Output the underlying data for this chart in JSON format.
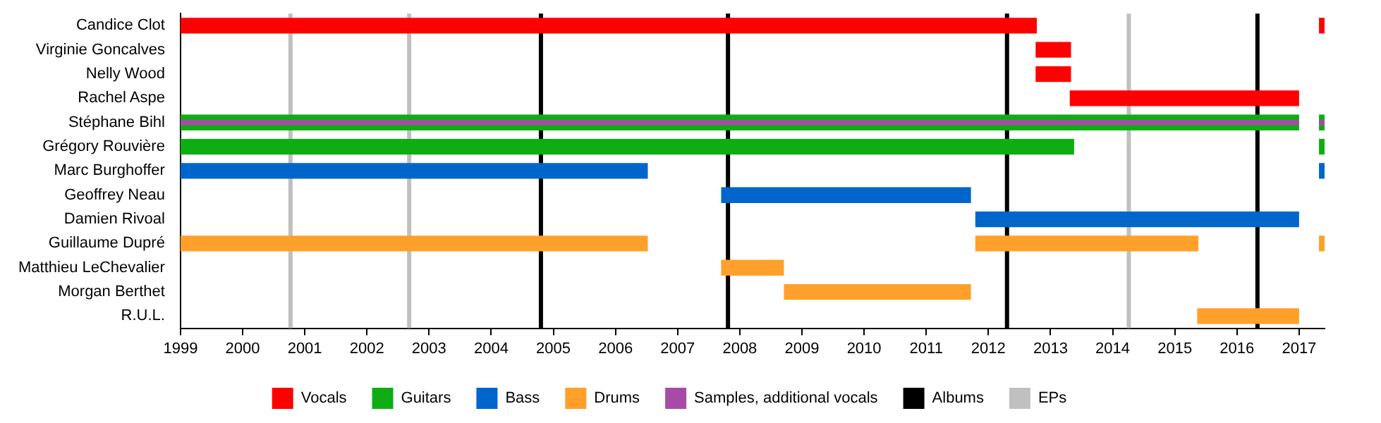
{
  "chart_data": {
    "type": "bar",
    "orientation": "horizontal",
    "categories": [
      "Candice Clot",
      "Virginie Goncalves",
      "Nelly Wood",
      "Rachel Aspe",
      "Stéphane Bihl",
      "Grégory Rouvière",
      "Marc Burghoffer",
      "Geoffrey Neau",
      "Damien Rivoal",
      "Guillaume Dupré",
      "Matthieu LeChevalier",
      "Morgan Berthet",
      "R.U.L."
    ],
    "series": [
      {
        "name": "Vocals",
        "color": "#ff0000",
        "base": [
          1999,
          2012.76,
          2012.76,
          2013.31,
          null,
          null,
          null,
          null,
          null,
          null,
          null,
          null,
          null
        ],
        "values": [
          13.78,
          0.57,
          0.57,
          3.69,
          null,
          null,
          null,
          null,
          null,
          null,
          null,
          null,
          null
        ]
      },
      {
        "name": "Guitars",
        "color": "#0ead13",
        "base": [
          null,
          null,
          null,
          null,
          1999,
          1999,
          null,
          null,
          null,
          null,
          null,
          null,
          null
        ],
        "values": [
          null,
          null,
          null,
          null,
          18.0,
          14.38,
          null,
          null,
          null,
          null,
          null,
          null,
          null
        ]
      },
      {
        "name": "Bass",
        "color": "#0066cc",
        "base": [
          null,
          null,
          null,
          null,
          null,
          null,
          1999,
          2007.7,
          2011.79,
          null,
          null,
          null,
          null
        ],
        "values": [
          null,
          null,
          null,
          null,
          null,
          null,
          7.52,
          4.02,
          5.21,
          null,
          null,
          null,
          null
        ]
      },
      {
        "name": "Drums",
        "color": "#ffa02a",
        "base": [
          null,
          null,
          null,
          null,
          null,
          null,
          null,
          null,
          null,
          1999,
          2007.7,
          2008.71,
          2015.36
        ],
        "values": [
          null,
          null,
          null,
          null,
          null,
          null,
          null,
          null,
          null,
          7.52,
          1.01,
          3.01,
          1.64
        ]
      },
      {
        "name": "Samples, additional vocals",
        "color": "#a64ca6",
        "base": [
          null,
          null,
          null,
          null,
          1999,
          null,
          null,
          null,
          null,
          null,
          null,
          null,
          null
        ],
        "values": [
          null,
          null,
          null,
          null,
          18.0,
          null,
          null,
          null,
          null,
          null,
          null,
          null,
          null
        ]
      },
      {
        "color": "#ff0000",
        "base": [
          2017.32,
          null,
          null,
          null,
          null,
          null,
          null,
          null,
          null,
          null,
          null,
          null,
          null
        ],
        "values": [
          0.09,
          null,
          null,
          null,
          null,
          null,
          null,
          null,
          null,
          null,
          null,
          null,
          null
        ]
      },
      {
        "color": "#0ead13",
        "base": [
          null,
          null,
          null,
          null,
          2017.32,
          2017.32,
          null,
          null,
          null,
          null,
          null,
          null,
          null
        ],
        "values": [
          null,
          null,
          null,
          null,
          0.09,
          0.09,
          null,
          null,
          null,
          null,
          null,
          null,
          null
        ]
      },
      {
        "color": "#a64ca6",
        "base": [
          null,
          null,
          null,
          null,
          2017.32,
          null,
          null,
          null,
          null,
          null,
          null,
          null,
          null
        ],
        "values": [
          null,
          null,
          null,
          null,
          0.09,
          null,
          null,
          null,
          null,
          null,
          null,
          null,
          null
        ]
      },
      {
        "color": "#0066cc",
        "base": [
          null,
          null,
          null,
          null,
          null,
          null,
          2017.32,
          null,
          null,
          null,
          null,
          null,
          null
        ],
        "values": [
          null,
          null,
          null,
          null,
          null,
          null,
          0.09,
          null,
          null,
          null,
          null,
          null,
          null
        ]
      },
      {
        "color": "#ffa02a",
        "base": [
          null,
          null,
          null,
          null,
          null,
          null,
          null,
          null,
          null,
          2011.79,
          null,
          null,
          null
        ],
        "values": [
          null,
          null,
          null,
          null,
          null,
          null,
          null,
          null,
          null,
          3.59,
          null,
          null,
          null
        ]
      },
      {
        "color": "#ffa02a",
        "base": [
          null,
          null,
          null,
          null,
          null,
          null,
          null,
          null,
          null,
          2017.32,
          null,
          null,
          null
        ],
        "values": [
          null,
          null,
          null,
          null,
          null,
          null,
          null,
          null,
          null,
          0.09,
          null,
          null,
          null
        ]
      }
    ],
    "xlim": [
      1999,
      2017.41
    ],
    "xticks": [
      1999,
      2000,
      2001,
      2002,
      2003,
      2004,
      2005,
      2006,
      2007,
      2008,
      2009,
      2010,
      2011,
      2012,
      2013,
      2014,
      2015,
      2016,
      2017
    ],
    "ref_lines": [
      {
        "axis": "x",
        "value": 2004.8,
        "label": "Albums",
        "color": "#000000"
      },
      {
        "axis": "x",
        "value": 2007.81,
        "color": "#000000"
      },
      {
        "axis": "x",
        "value": 2012.3,
        "color": "#000000"
      },
      {
        "axis": "x",
        "value": 2016.33,
        "color": "#000000"
      },
      {
        "axis": "x",
        "value": 2000.77,
        "label": "EPs",
        "color": "#c0c0c0"
      },
      {
        "axis": "x",
        "value": 2002.68,
        "color": "#c0c0c0"
      },
      {
        "axis": "x",
        "value": 2014.26,
        "color": "#c0c0c0"
      }
    ],
    "legend": "bottom"
  }
}
